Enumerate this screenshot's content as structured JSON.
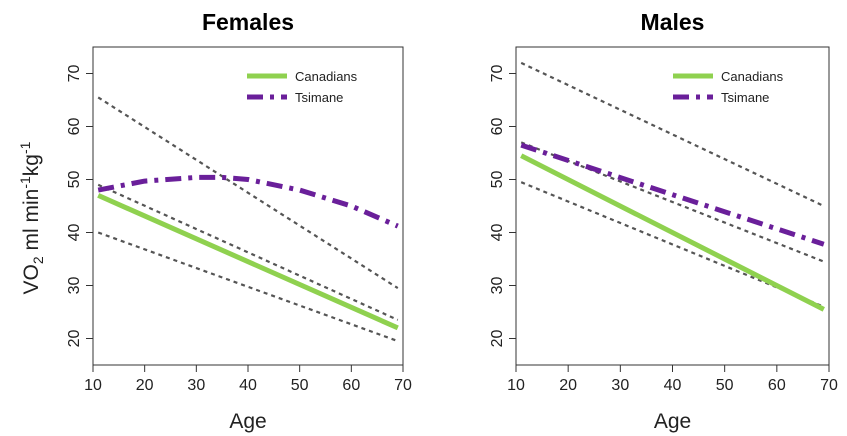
{
  "figure": {
    "ylabel": {
      "base": "VO",
      "sub": "2",
      "unit1": " ml min",
      "sup1": "-1",
      "unit2": "kg",
      "sup2": "-1"
    }
  },
  "chart_data": [
    {
      "type": "line",
      "title": "Females",
      "xlabel": "Age",
      "ylabel": "VO2 ml min-1kg-1",
      "xlim": [
        10,
        70
      ],
      "ylim": [
        15,
        75
      ],
      "xticks": [
        10,
        20,
        30,
        40,
        50,
        60,
        70
      ],
      "yticks": [
        20,
        30,
        40,
        50,
        60,
        70
      ],
      "legend": {
        "position": "top-right",
        "entries": [
          "Canadians",
          "Tsimane"
        ]
      },
      "series": [
        {
          "name": "Canadians",
          "style": "solid",
          "color": "#8fd14f",
          "x": [
            11,
            69
          ],
          "y": [
            47,
            22
          ]
        },
        {
          "name": "Tsimane",
          "style": "dashdot",
          "color": "#6a1f9a",
          "x": [
            11,
            20,
            30,
            35,
            40,
            50,
            60,
            69
          ],
          "y": [
            48,
            49.7,
            50.4,
            50.4,
            50,
            48,
            45,
            41.2
          ]
        },
        {
          "style": "dotted",
          "color": "#555555",
          "x": [
            11,
            69
          ],
          "y": [
            65.5,
            29.5
          ]
        },
        {
          "style": "dotted",
          "color": "#555555",
          "x": [
            11,
            69
          ],
          "y": [
            49,
            23.5
          ]
        },
        {
          "style": "dotted",
          "color": "#555555",
          "x": [
            11,
            69
          ],
          "y": [
            40,
            19.5
          ]
        }
      ]
    },
    {
      "type": "line",
      "title": "Males",
      "xlabel": "Age",
      "ylabel": "",
      "xlim": [
        10,
        70
      ],
      "ylim": [
        15,
        75
      ],
      "xticks": [
        10,
        20,
        30,
        40,
        50,
        60,
        70
      ],
      "yticks": [
        20,
        30,
        40,
        50,
        60,
        70
      ],
      "legend": {
        "position": "top-right",
        "entries": [
          "Canadians",
          "Tsimane"
        ]
      },
      "series": [
        {
          "name": "Canadians",
          "style": "solid",
          "color": "#8fd14f",
          "x": [
            11,
            69
          ],
          "y": [
            54.5,
            25.5
          ]
        },
        {
          "name": "Tsimane",
          "style": "dashdot",
          "color": "#6a1f9a",
          "x": [
            11,
            69
          ],
          "y": [
            56.5,
            37.8
          ]
        },
        {
          "style": "dotted",
          "color": "#555555",
          "x": [
            11,
            69
          ],
          "y": [
            72,
            45
          ]
        },
        {
          "style": "dotted",
          "color": "#555555",
          "x": [
            11,
            69
          ],
          "y": [
            57,
            34.5
          ]
        },
        {
          "style": "dotted",
          "color": "#555555",
          "x": [
            11,
            69
          ],
          "y": [
            49.5,
            26
          ]
        }
      ]
    }
  ]
}
